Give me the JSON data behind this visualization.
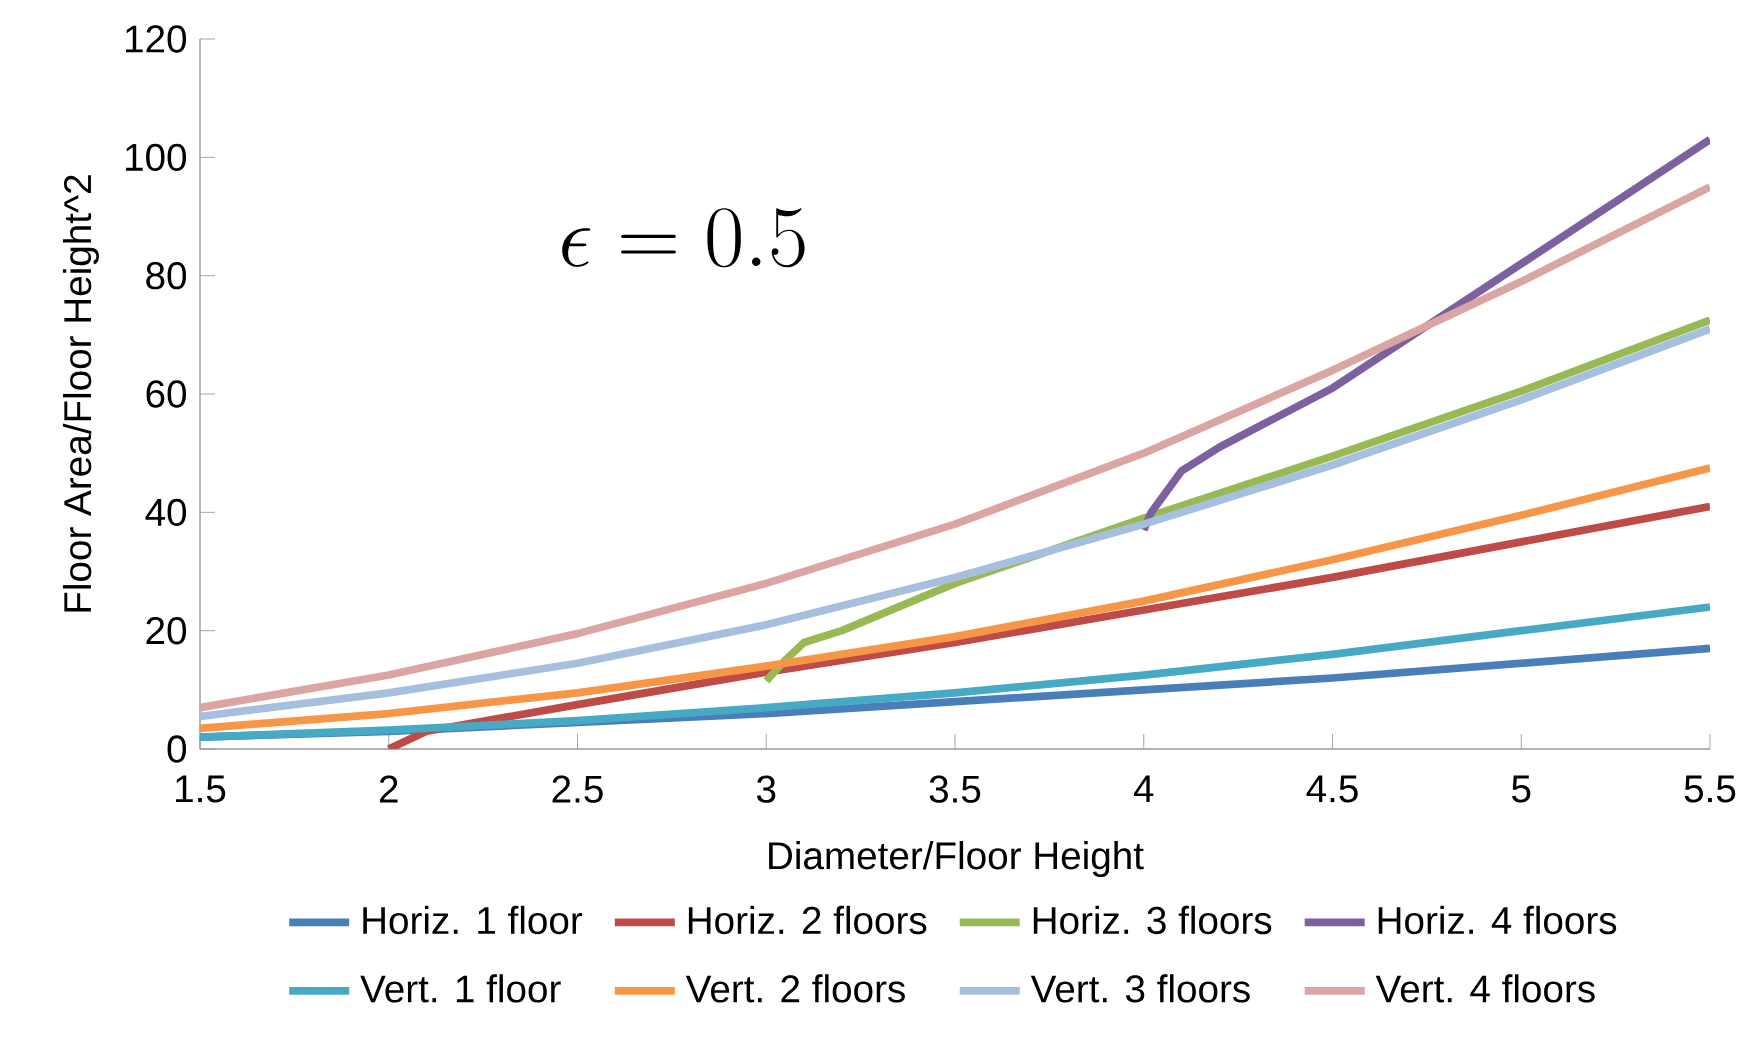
{
  "chart_data": {
    "type": "line",
    "xlabel": "Diameter/Floor Height",
    "ylabel": "Floor Area/Floor Height^2",
    "xlim": [
      1.5,
      5.5
    ],
    "ylim": [
      0,
      120
    ],
    "xticks": [
      1.5,
      2,
      2.5,
      3,
      3.5,
      4,
      4.5,
      5,
      5.5
    ],
    "yticks": [
      0,
      20,
      40,
      60,
      80,
      100,
      120
    ],
    "grid": false,
    "legend": "bottom",
    "marker": "none",
    "line_style": "solid",
    "annotations": [
      "\\epsilon = 0.5"
    ],
    "series": [
      {
        "name": "Horiz. 1 floor",
        "color": "#4a7ebb",
        "x": [
          1.5,
          2,
          2.5,
          3,
          3.5,
          4,
          4.5,
          5,
          5.5
        ],
        "values": [
          2,
          3,
          4.5,
          6,
          8,
          10,
          12,
          14.5,
          17
        ]
      },
      {
        "name": "Horiz. 2 floors",
        "color": "#be4b48",
        "x": [
          2,
          2.05,
          2.1,
          2.5,
          3,
          3.5,
          4,
          4.5,
          5,
          5.5
        ],
        "values": [
          0,
          1.5,
          3,
          7.5,
          13,
          18,
          23.5,
          29,
          35,
          41
        ]
      },
      {
        "name": "Horiz. 3 floors",
        "color": "#98b954",
        "x": [
          3,
          3.05,
          3.1,
          3.2,
          3.5,
          4,
          4.5,
          5,
          5.5
        ],
        "values": [
          11.5,
          15,
          18,
          20,
          28,
          39,
          49.5,
          60.5,
          72.5
        ]
      },
      {
        "name": "Horiz. 4 floors",
        "color": "#7d60a0",
        "x": [
          4,
          4.02,
          4.1,
          4.2,
          4.5,
          5,
          5.5
        ],
        "values": [
          37,
          40,
          47,
          51,
          61,
          82,
          103
        ]
      },
      {
        "name": "Vert. 1 floor",
        "color": "#46aac5",
        "x": [
          1.5,
          2,
          2.5,
          3,
          3.5,
          4,
          4.5,
          5,
          5.5
        ],
        "values": [
          2,
          3.2,
          4.8,
          7,
          9.5,
          12.5,
          16,
          20,
          24
        ]
      },
      {
        "name": "Vert. 2 floors",
        "color": "#f79646",
        "x": [
          1.5,
          2,
          2.5,
          3,
          3.5,
          4,
          4.5,
          5,
          5.5
        ],
        "values": [
          3.5,
          6,
          9.5,
          14,
          19,
          25,
          32,
          39.5,
          47.5
        ]
      },
      {
        "name": "Vert. 3 floors",
        "color": "#a7bfde",
        "x": [
          1.5,
          2,
          2.5,
          3,
          3.5,
          4,
          4.5,
          5,
          5.5
        ],
        "values": [
          5.5,
          9.5,
          14.5,
          21,
          29,
          38,
          48,
          59,
          71
        ]
      },
      {
        "name": "Vert. 4 floors",
        "color": "#dba5a3",
        "x": [
          1.5,
          2,
          2.5,
          3,
          3.5,
          4,
          4.5,
          5,
          5.5
        ],
        "values": [
          7,
          12.5,
          19.5,
          28,
          38,
          50,
          64,
          79,
          95
        ]
      }
    ]
  }
}
